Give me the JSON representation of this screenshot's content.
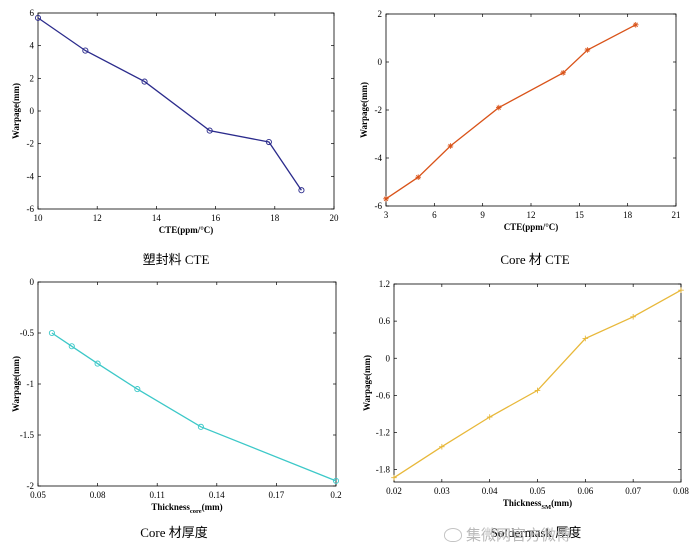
{
  "captions": [
    "塑封料 CTE",
    "Core 材 CTE",
    "Core 材厚度",
    "Soldermask 厚度"
  ],
  "watermark": "集微网官方微博",
  "chart_data": [
    {
      "type": "line",
      "xlabel": "CTE(ppm/°C)",
      "ylabel": "Warpage(mm)",
      "xlim": [
        10,
        20
      ],
      "ylim": [
        -6,
        6
      ],
      "xticks": [
        10,
        12,
        14,
        16,
        18,
        20
      ],
      "xtick_labels": [
        "10",
        "12",
        "14",
        "16",
        "18",
        "20"
      ],
      "yticks": [
        -6,
        -4,
        -2,
        0,
        2,
        4,
        6
      ],
      "ytick_labels": [
        "-6",
        "-4",
        "-2",
        "0",
        "2",
        "4",
        "6"
      ],
      "color": "#2b2b8c",
      "marker": "circle",
      "x": [
        10.0,
        11.6,
        13.6,
        15.8,
        17.8,
        18.9
      ],
      "y": [
        5.7,
        3.7,
        1.8,
        -1.2,
        -1.9,
        -4.85
      ]
    },
    {
      "type": "line",
      "xlabel": "CTE(ppm/°C)",
      "ylabel": "Warpage(mm)",
      "xlim": [
        3,
        21
      ],
      "ylim": [
        -6,
        2
      ],
      "xticks": [
        3,
        6,
        9,
        12,
        15,
        18,
        21
      ],
      "xtick_labels": [
        "3",
        "6",
        "9",
        "12",
        "15",
        "18",
        "21"
      ],
      "yticks": [
        -6,
        -4,
        -2,
        0,
        2
      ],
      "ytick_labels": [
        "-6",
        "-4",
        "-2",
        "0",
        "2"
      ],
      "color": "#d95319",
      "marker": "star",
      "x": [
        3.0,
        5.0,
        7.0,
        10.0,
        14.0,
        15.5,
        18.5
      ],
      "y": [
        -5.7,
        -4.8,
        -3.5,
        -1.9,
        -0.45,
        0.5,
        1.55
      ]
    },
    {
      "type": "line",
      "xlabel": "Thickness",
      "xlabel_sub": "core",
      "xlabel_unit": "(mm)",
      "ylabel": "Warpage(mm)",
      "xlim": [
        0.05,
        0.2
      ],
      "ylim": [
        -2,
        0
      ],
      "xticks": [
        0.05,
        0.08,
        0.11,
        0.14,
        0.17,
        0.2
      ],
      "xtick_labels": [
        "0.05",
        "0.08",
        "0.11",
        "0.14",
        "0.17",
        "0.2"
      ],
      "yticks": [
        -2,
        -1.5,
        -1,
        -0.5,
        0
      ],
      "ytick_labels": [
        "-2",
        "-1.5",
        "-1",
        "-0.5",
        "0"
      ],
      "color": "#3cc8c8",
      "marker": "circle",
      "x": [
        0.057,
        0.067,
        0.08,
        0.1,
        0.132,
        0.2
      ],
      "y": [
        -0.5,
        -0.63,
        -0.8,
        -1.05,
        -1.42,
        -1.95
      ]
    },
    {
      "type": "line",
      "xlabel": "Thickness",
      "xlabel_sub": "SM",
      "xlabel_unit": "(mm)",
      "ylabel": "Warpage(mm)",
      "xlim": [
        0.02,
        0.08
      ],
      "ylim": [
        -2.0,
        1.2
      ],
      "xticks": [
        0.02,
        0.03,
        0.04,
        0.05,
        0.06,
        0.07,
        0.08
      ],
      "xtick_labels": [
        "0.02",
        "0.03",
        "0.04",
        "0.05",
        "0.06",
        "0.07",
        "0.08"
      ],
      "yticks": [
        -1.8,
        -1.2,
        -0.6,
        0,
        0.6,
        1.2
      ],
      "ytick_labels": [
        "-1.8",
        "-1.2",
        "-0.6",
        "0",
        "0.6",
        "1.2"
      ],
      "color": "#e8b83a",
      "marker": "plus",
      "x": [
        0.02,
        0.03,
        0.04,
        0.05,
        0.06,
        0.07,
        0.08
      ],
      "y": [
        -1.93,
        -1.43,
        -0.95,
        -0.52,
        0.32,
        0.67,
        1.1
      ]
    }
  ]
}
